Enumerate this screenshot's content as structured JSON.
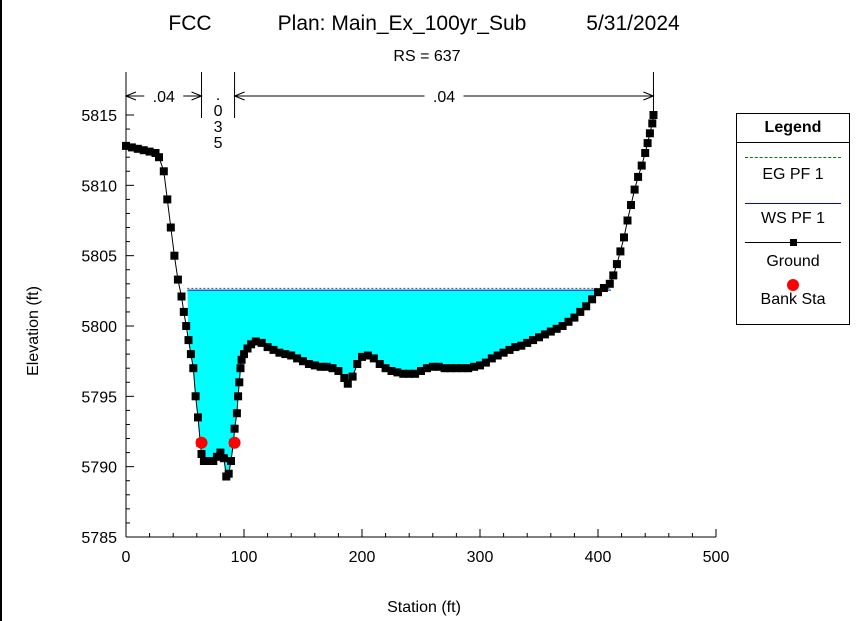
{
  "header": {
    "project": "FCC",
    "plan": "Plan: Main_Ex_100yr_Sub",
    "date": "5/31/2024",
    "rs": "RS = 637"
  },
  "chart_data": {
    "type": "line",
    "title": "FCC     Plan: Main_Ex_100yr_Sub     5/31/2024",
    "subtitle": "RS = 637",
    "xlabel": "Station (ft)",
    "ylabel": "Elevation (ft)",
    "xlim": [
      0,
      500
    ],
    "ylim": [
      5785,
      5817
    ],
    "x_ticks": [
      "0",
      "100",
      "200",
      "300",
      "400",
      "500"
    ],
    "y_ticks": [
      "5785",
      "5790",
      "5795",
      "5800",
      "5805",
      "5810",
      "5815"
    ],
    "grid": false,
    "legend_position": "right",
    "manning_n": {
      "left_overbank": ".04",
      "channel": ".035",
      "right_overbank": ".04",
      "left_overbank_range": [
        0,
        64
      ],
      "channel_range": [
        64,
        92
      ],
      "right_overbank_range": [
        92,
        447
      ]
    },
    "series": [
      {
        "name": "EG PF 1",
        "style": "dashed",
        "color": "#008000",
        "elevation": 5802.6,
        "x_range": [
          52,
          411
        ]
      },
      {
        "name": "WS PF 1",
        "style": "solid",
        "color": "#0000ff",
        "elevation": 5802.55,
        "x_range": [
          52,
          411
        ]
      },
      {
        "name": "Ground",
        "style": "line-with-square-markers",
        "color": "#000000",
        "x": [
          0,
          5,
          10,
          15,
          20,
          25,
          28,
          32,
          35,
          38,
          41,
          44,
          47,
          49,
          51,
          53,
          55,
          57,
          59,
          61,
          63,
          64,
          66,
          68,
          71,
          74,
          77,
          80,
          83,
          85,
          87,
          89,
          91,
          92,
          94,
          95,
          96,
          97,
          98,
          100,
          103,
          106,
          110,
          115,
          120,
          125,
          130,
          135,
          140,
          145,
          150,
          155,
          160,
          165,
          170,
          175,
          180,
          185,
          188,
          192,
          196,
          200,
          205,
          210,
          215,
          220,
          225,
          230,
          235,
          240,
          245,
          250,
          255,
          260,
          265,
          270,
          275,
          280,
          285,
          290,
          295,
          300,
          305,
          310,
          315,
          320,
          325,
          330,
          335,
          340,
          345,
          350,
          355,
          360,
          365,
          370,
          375,
          380,
          385,
          390,
          395,
          400,
          405,
          410,
          413,
          416,
          419,
          422,
          425,
          428,
          431,
          434,
          437,
          440,
          442,
          444,
          446,
          447
        ],
        "y": [
          5812.8,
          5812.7,
          5812.6,
          5812.5,
          5812.4,
          5812.3,
          5812.0,
          5811.0,
          5809.0,
          5807.0,
          5805.0,
          5803.3,
          5802.1,
          5801.0,
          5800.0,
          5799.0,
          5798.0,
          5797.0,
          5795.0,
          5793.5,
          5791.7,
          5790.9,
          5790.4,
          5790.4,
          5790.4,
          5790.4,
          5790.7,
          5791.0,
          5790.6,
          5789.3,
          5789.5,
          5790.4,
          5791.7,
          5792.7,
          5793.8,
          5795.0,
          5796.0,
          5797.0,
          5797.6,
          5798.0,
          5798.4,
          5798.7,
          5798.9,
          5798.8,
          5798.5,
          5798.3,
          5798.1,
          5798.0,
          5797.9,
          5797.7,
          5797.5,
          5797.3,
          5797.2,
          5797.1,
          5797.1,
          5797.0,
          5796.8,
          5796.3,
          5795.9,
          5796.4,
          5797.3,
          5797.8,
          5797.9,
          5797.7,
          5797.3,
          5797.0,
          5796.8,
          5796.7,
          5796.6,
          5796.6,
          5796.6,
          5796.8,
          5797.0,
          5797.1,
          5797.1,
          5797.0,
          5797.0,
          5797.0,
          5797.0,
          5797.0,
          5797.1,
          5797.2,
          5797.4,
          5797.7,
          5797.9,
          5798.1,
          5798.3,
          5798.5,
          5798.6,
          5798.8,
          5799.0,
          5799.2,
          5799.4,
          5799.6,
          5799.8,
          5800.0,
          5800.3,
          5800.6,
          5801.0,
          5801.4,
          5801.9,
          5802.4,
          5802.7,
          5803.0,
          5803.6,
          5804.4,
          5805.3,
          5806.3,
          5807.5,
          5808.6,
          5809.7,
          5810.6,
          5811.4,
          5812.3,
          5813.0,
          5813.7,
          5814.4,
          5815.0
        ]
      },
      {
        "name": "Bank Sta",
        "style": "markers",
        "color": "#ff0000",
        "x": [
          64,
          92
        ],
        "y": [
          5791.7,
          5791.7
        ]
      }
    ]
  },
  "legend": {
    "title": "Legend",
    "items": [
      "EG PF 1",
      "WS PF 1",
      "Ground",
      "Bank Sta"
    ]
  },
  "colors": {
    "water": "#00ffff",
    "eg": "#008000",
    "ws": "#0000ff",
    "ground": "#000000",
    "bank": "#ff0000"
  }
}
